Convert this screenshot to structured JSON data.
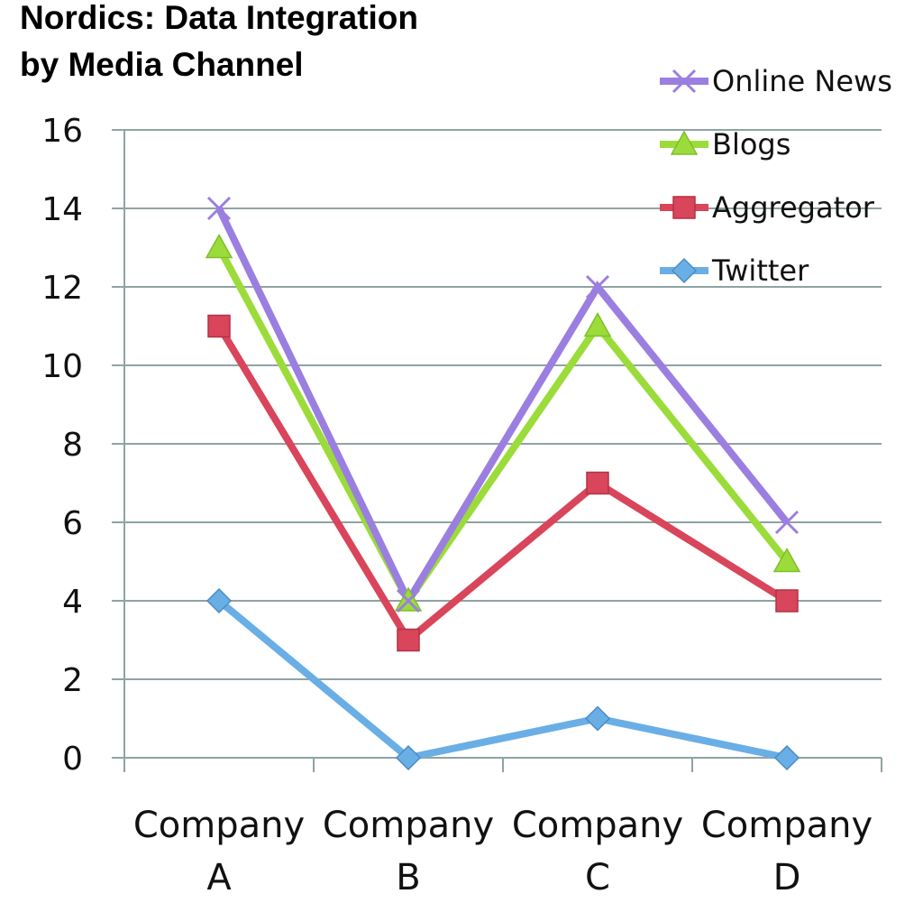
{
  "chart_data": {
    "type": "line",
    "title": "Nordics: Data Integration\nby Media Channel",
    "categories": [
      [
        "Company",
        "A"
      ],
      [
        "Company",
        "B"
      ],
      [
        "Company",
        "C"
      ],
      [
        "Company",
        "D"
      ]
    ],
    "ylim": [
      0,
      16
    ],
    "yticks": [
      0,
      2,
      4,
      6,
      8,
      10,
      12,
      14,
      16
    ],
    "grid": true,
    "legend_position": "top-right",
    "series": [
      {
        "name": "Online News",
        "values": [
          14,
          4,
          12,
          6
        ],
        "color": "#9b7fe0",
        "marker": "x"
      },
      {
        "name": "Blogs",
        "values": [
          13,
          4,
          11,
          5
        ],
        "color": "#9bdc3a",
        "marker": "triangle"
      },
      {
        "name": "Aggregator",
        "values": [
          11,
          3,
          7,
          4
        ],
        "color": "#d9455a",
        "marker": "square"
      },
      {
        "name": "Twitter",
        "values": [
          4,
          0,
          1,
          0
        ],
        "color": "#6aaee6",
        "marker": "diamond"
      }
    ]
  }
}
